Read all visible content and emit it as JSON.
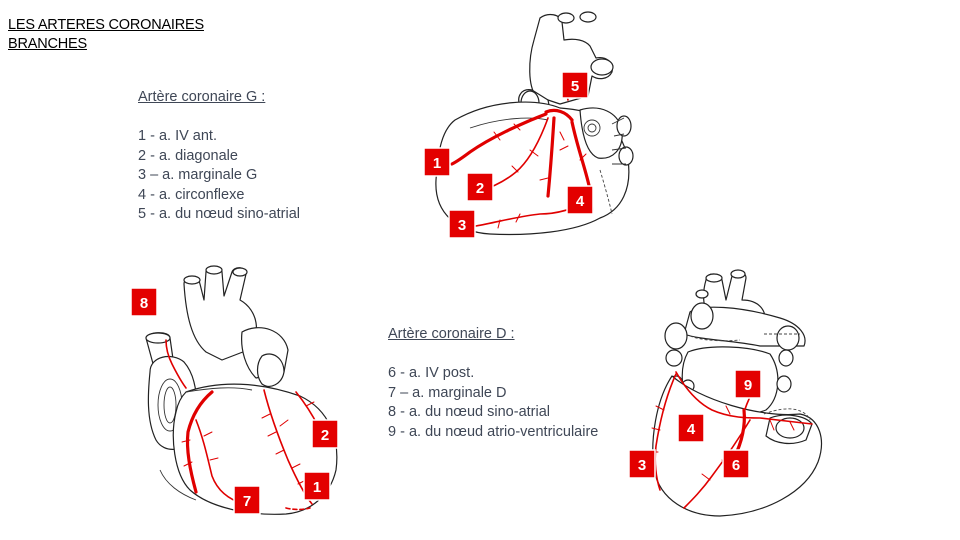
{
  "title": {
    "line1": "LES ARTERES CORONAIRES",
    "line2": "BRANCHES"
  },
  "legend_left": {
    "heading": "Artère coronaire G :",
    "items": [
      "1 - a. IV ant.",
      "2 - a. diagonale",
      "3 – a. marginale G",
      "4 - a. circonflexe",
      "5 - a. du nœud sino-atrial"
    ]
  },
  "legend_right": {
    "heading": "Artère coronaire D :",
    "items": [
      "6 - a. IV post.",
      "7 – a. marginale D",
      "8 - a. du nœud sino-atrial",
      "9 - a. du nœud atrio-ventriculaire"
    ]
  },
  "badges": {
    "top": [
      "1",
      "2",
      "3",
      "4",
      "5"
    ],
    "left": [
      "8",
      "2",
      "7",
      "1"
    ],
    "right": [
      "9",
      "4",
      "3",
      "6"
    ]
  },
  "colors": {
    "artery": "#e00000",
    "badge": "#e30000",
    "legend_text": "#3f4756"
  }
}
